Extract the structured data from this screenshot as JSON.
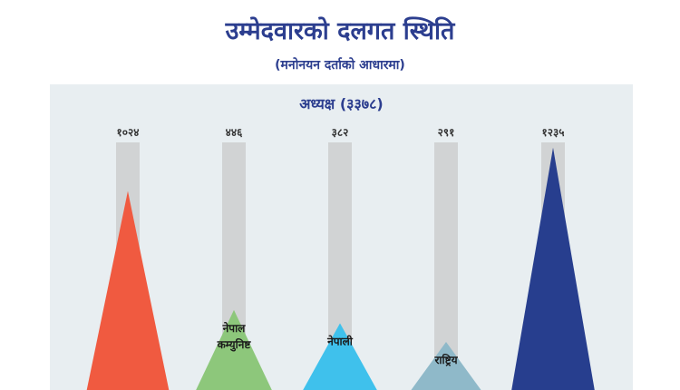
{
  "page": {
    "title": "उम्मेदवारको दलगत स्थिति",
    "subtitle": "(मनोनयन दर्ताको आधारमा)"
  },
  "chart_data": {
    "type": "bar",
    "title": "अध्यक्ष (३३७८)",
    "total": 3378,
    "categories": [
      "",
      "नेपाल कम्युनिष्ट",
      "नेपाली",
      "राष्ट्रिय",
      ""
    ],
    "values": [
      1024,
      446,
      382,
      291,
      1235
    ],
    "value_labels": [
      "१०२४",
      "४४६",
      "३८२",
      "२९१",
      "१२३५"
    ],
    "colors": [
      "#f05a40",
      "#8dc77b",
      "#3fc1ec",
      "#8fb9c9",
      "#273e8e"
    ],
    "track_color": "#d1d3d4",
    "ylim": [
      0,
      1300
    ]
  }
}
